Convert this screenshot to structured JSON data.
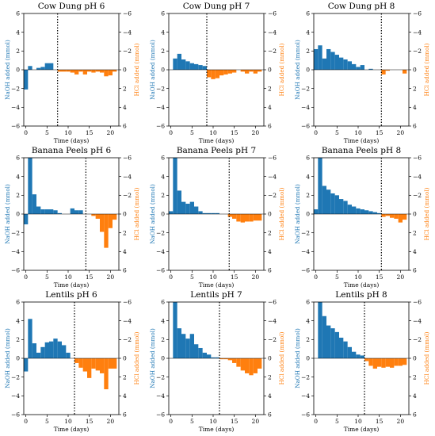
{
  "figure": {
    "colors": {
      "naoh": "#1f77b4",
      "hcl": "#ff7f0e",
      "axis": "#000000"
    },
    "xticks": [
      0,
      5,
      10,
      15,
      20
    ],
    "yticks_left": [
      -6,
      -4,
      -2,
      0,
      2,
      4,
      6
    ],
    "yticks_right": [
      6,
      4,
      2,
      0,
      -2,
      -4,
      -6
    ]
  },
  "chart_data": [
    {
      "type": "bar",
      "title": "Cow Dung pH 6",
      "xlabel": "Time (days)",
      "ylabel_left": "NaOH added (mmol)",
      "ylabel_right": "HCl added (mmol)",
      "xlim": [
        -0.5,
        22
      ],
      "ylim": [
        -6,
        6
      ],
      "divider_day": 7.5,
      "series": [
        {
          "name": "NaOH",
          "values": [
            -2.1,
            0.4,
            0,
            0.2,
            0.3,
            0.7,
            0.7,
            0,
            0,
            0,
            0,
            0,
            0,
            0,
            0,
            0,
            0,
            0,
            0,
            0,
            0,
            0
          ]
        },
        {
          "name": "HCl",
          "values": [
            0,
            0,
            0,
            0,
            0,
            0,
            0,
            0,
            0.2,
            0.2,
            0.2,
            0.3,
            0.5,
            0.2,
            0.5,
            0.2,
            0.3,
            0.2,
            0.3,
            0.7,
            0.6,
            0.2
          ]
        }
      ]
    },
    {
      "type": "bar",
      "title": "Cow Dung pH 7",
      "xlabel": "Time (days)",
      "ylabel_left": "NaOH added (mmol)",
      "ylabel_right": "HCl added (mmol)",
      "xlim": [
        -0.5,
        22
      ],
      "ylim": [
        -6,
        6
      ],
      "divider_day": 8.5,
      "series": [
        {
          "name": "NaOH",
          "values": [
            0,
            1.2,
            1.7,
            1.1,
            0.9,
            0.7,
            0.6,
            0.5,
            0.4,
            0,
            0,
            0,
            0,
            0,
            0,
            0,
            0,
            0,
            0,
            0,
            0,
            0
          ]
        },
        {
          "name": "HCl",
          "values": [
            0,
            0,
            0,
            0,
            0,
            0,
            0,
            0,
            0,
            0.8,
            1.0,
            0.9,
            0.6,
            0.5,
            0.4,
            0.3,
            0,
            0.2,
            0.4,
            0.2,
            0.4,
            0.2
          ]
        }
      ]
    },
    {
      "type": "bar",
      "title": "Cow Dung pH 8",
      "xlabel": "Time (days)",
      "ylabel_left": "NaOH added (mmol)",
      "ylabel_right": "HCl added (mmol)",
      "xlim": [
        -0.5,
        22
      ],
      "ylim": [
        -6,
        6
      ],
      "divider_day": 15.5,
      "series": [
        {
          "name": "NaOH",
          "values": [
            2.2,
            2.6,
            1.2,
            2.2,
            1.9,
            1.6,
            1.3,
            1.1,
            0.9,
            0.6,
            0.3,
            0.5,
            0,
            0.1,
            0,
            0,
            0,
            0,
            0,
            0,
            0,
            0
          ]
        },
        {
          "name": "HCl",
          "values": [
            0,
            0,
            0,
            0,
            0,
            0,
            0,
            0,
            0,
            0,
            0,
            0,
            0,
            0,
            0,
            0,
            0.5,
            0.1,
            0,
            0,
            0,
            0.4
          ]
        }
      ]
    },
    {
      "type": "bar",
      "title": "Banana Peels pH 6",
      "xlabel": "Time (days)",
      "ylabel_left": "NaOH added (mmol)",
      "ylabel_right": "HCl added (mmol)",
      "xlim": [
        -0.5,
        22
      ],
      "ylim": [
        -6,
        6
      ],
      "divider_day": 14.2,
      "series": [
        {
          "name": "NaOH",
          "values": [
            -1.1,
            6.0,
            2.1,
            0.8,
            0.5,
            0.5,
            0.5,
            0.4,
            0.1,
            0,
            0,
            0.6,
            0.4,
            0.4,
            0,
            0,
            0,
            0,
            0,
            0,
            0,
            0
          ]
        },
        {
          "name": "HCl",
          "values": [
            0,
            0,
            0,
            0,
            0,
            0,
            0,
            0,
            0,
            0,
            0,
            0,
            0,
            0,
            0,
            0,
            0.2,
            0.5,
            1.9,
            3.6,
            1.5,
            0.6
          ]
        }
      ]
    },
    {
      "type": "bar",
      "title": "Banana Peels pH 7",
      "xlabel": "Time (days)",
      "ylabel_left": "NaOH added (mmol)",
      "ylabel_right": "HCl added (mmol)",
      "xlim": [
        -0.5,
        22
      ],
      "ylim": [
        -6,
        6
      ],
      "divider_day": 13.8,
      "series": [
        {
          "name": "NaOH",
          "values": [
            0.3,
            6.0,
            2.5,
            1.3,
            1.1,
            1.3,
            0.8,
            0.3,
            0.1,
            0.1,
            0.1,
            0.1,
            0,
            0,
            0,
            0,
            0,
            0,
            0,
            0,
            0,
            0
          ]
        },
        {
          "name": "HCl",
          "values": [
            0,
            0,
            0,
            0,
            0,
            0,
            0,
            0,
            0,
            0,
            0,
            0,
            0,
            0,
            0.3,
            0.5,
            0.8,
            0.9,
            0.8,
            0.8,
            0.7,
            0.7
          ]
        }
      ]
    },
    {
      "type": "bar",
      "title": "Banana Peels pH 8",
      "xlabel": "Time (days)",
      "ylabel_left": "NaOH added (mmol)",
      "ylabel_right": "HCl added (mmol)",
      "xlim": [
        -0.5,
        22
      ],
      "ylim": [
        -6,
        6
      ],
      "divider_day": 15.5,
      "series": [
        {
          "name": "NaOH",
          "values": [
            0.5,
            6.0,
            3.0,
            2.6,
            2.2,
            2.0,
            1.6,
            1.4,
            1.0,
            0.8,
            0.6,
            0.5,
            0.4,
            0.3,
            0.2,
            0.1,
            0,
            0,
            0,
            0,
            0,
            0
          ]
        },
        {
          "name": "HCl",
          "values": [
            0,
            0,
            0,
            0,
            0,
            0,
            0,
            0,
            0,
            0,
            0,
            0,
            0,
            0,
            0,
            0,
            0.3,
            0.2,
            0.4,
            0.5,
            0.9,
            0.6
          ]
        }
      ]
    },
    {
      "type": "bar",
      "title": "Lentils pH 6",
      "xlabel": "Time (days)",
      "ylabel_left": "NaOH added (mmol)",
      "ylabel_right": "HCl added (mmol)",
      "xlim": [
        -0.5,
        22
      ],
      "ylim": [
        -6,
        6
      ],
      "divider_day": 11.5,
      "series": [
        {
          "name": "NaOH",
          "values": [
            -1.4,
            4.2,
            1.6,
            0.6,
            1.2,
            1.7,
            1.8,
            2.1,
            1.8,
            1.4,
            0.6,
            0,
            0,
            0,
            0,
            0,
            0,
            0,
            0,
            0,
            0,
            0
          ]
        },
        {
          "name": "HCl",
          "values": [
            0,
            0,
            0,
            0,
            0,
            0,
            0,
            0,
            0,
            0,
            0,
            0,
            0.5,
            1.0,
            1.4,
            2.1,
            1.1,
            1.3,
            1.6,
            3.3,
            1.1,
            1.1
          ]
        }
      ]
    },
    {
      "type": "bar",
      "title": "Lentils pH 7",
      "xlabel": "Time (days)",
      "ylabel_left": "NaOH added (mmol)",
      "ylabel_right": "HCl added (mmol)",
      "xlim": [
        -0.5,
        22
      ],
      "ylim": [
        -6,
        6
      ],
      "divider_day": 11.5,
      "series": [
        {
          "name": "NaOH",
          "values": [
            0,
            6.0,
            3.2,
            2.6,
            2.1,
            2.6,
            1.5,
            1.1,
            0.6,
            0.4,
            0.1,
            0.1,
            0,
            0,
            0,
            0,
            0,
            0,
            0,
            0,
            0,
            0
          ]
        },
        {
          "name": "HCl",
          "values": [
            0,
            0,
            0,
            0,
            0,
            0,
            0,
            0,
            0,
            0,
            0,
            0,
            0.1,
            0.1,
            0.2,
            0.5,
            0.9,
            1.3,
            1.6,
            1.8,
            1.6,
            1.1
          ]
        }
      ]
    },
    {
      "type": "bar",
      "title": "Lentils pH 8",
      "xlabel": "Time (days)",
      "ylabel_left": "NaOH added (mmol)",
      "ylabel_right": "HCl added (mmol)",
      "xlim": [
        -0.5,
        22
      ],
      "ylim": [
        -6,
        6
      ],
      "divider_day": 11.5,
      "series": [
        {
          "name": "NaOH",
          "values": [
            0,
            6.0,
            4.5,
            3.5,
            3.2,
            2.8,
            2.2,
            1.8,
            1.2,
            0.7,
            0.4,
            0.3,
            0,
            0,
            0,
            0,
            0,
            0,
            0,
            0,
            0,
            0
          ]
        },
        {
          "name": "HCl",
          "values": [
            0,
            0,
            0,
            0,
            0,
            0,
            0,
            0,
            0,
            0,
            0,
            0,
            0.3,
            0.8,
            1.1,
            0.9,
            1.0,
            0.9,
            1.0,
            0.8,
            0.8,
            0.7
          ]
        }
      ]
    }
  ]
}
